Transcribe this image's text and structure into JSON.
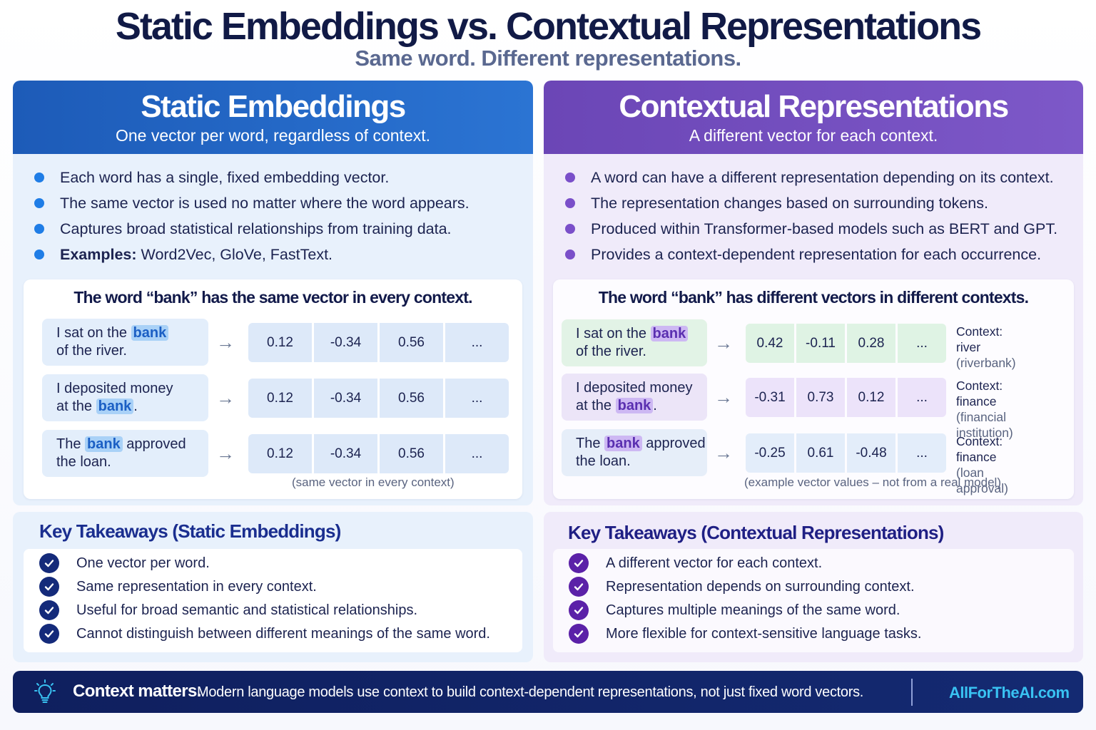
{
  "header": {
    "title": "Static Embeddings vs. Contextual Representations",
    "subtitle": "Same word. Different representations."
  },
  "static": {
    "title": "Static Embeddings",
    "subtitle": "One vector per word, regardless of context.",
    "bullets": [
      "Each word has a single, fixed embedding vector.",
      "The same vector is used no matter where the word appears.",
      "Captures broad statistical relationships from training data."
    ],
    "examples_label": "Examples:",
    "examples_value": " Word2Vec, GloVe, FastText.",
    "card_title": "The word “bank” has the same vector in every context.",
    "rows": [
      {
        "pre": "I sat on the ",
        "word": "bank",
        "post": "",
        "line2": "of the river.",
        "values": [
          "0.12",
          "-0.34",
          "0.56",
          "..."
        ]
      },
      {
        "pre": "I deposited money",
        "word": "",
        "post": "",
        "line2_pre": "at the ",
        "line2_word": "bank",
        "line2_post": ".",
        "values": [
          "0.12",
          "-0.34",
          "0.56",
          "..."
        ]
      },
      {
        "pre": "The ",
        "word": "bank",
        "post": " approved",
        "line2": "the loan.",
        "values": [
          "0.12",
          "-0.34",
          "0.56",
          "..."
        ]
      }
    ],
    "note": "(same vector in every context)",
    "takeaways_title": "Key Takeaways (Static Embeddings)",
    "takeaways": [
      "One vector per word.",
      "Same representation in every context.",
      "Useful for broad semantic and statistical relationships.",
      "Cannot distinguish between different meanings of the same word."
    ]
  },
  "contextual": {
    "title": "Contextual Representations",
    "subtitle": "A different vector for each context.",
    "bullets": [
      "A word can have a different representation depending on its context.",
      "The representation changes based on surrounding tokens.",
      "Produced within Transformer-based models such as BERT and GPT.",
      "Provides a context-dependent representation for each occurrence."
    ],
    "card_title": "The word “bank” has different vectors in different contexts.",
    "rows": [
      {
        "pre": "I sat on the ",
        "word": "bank",
        "post": "",
        "line2": "of the river.",
        "values": [
          "0.42",
          "-0.11",
          "0.28",
          "..."
        ],
        "context": "Context: river",
        "context_sub": "(riverbank)",
        "color": "#dff3e4",
        "sent_color": "#e2f3e6"
      },
      {
        "pre": "I deposited money",
        "word": "",
        "post": "",
        "line2_pre": "at the ",
        "line2_word": "bank",
        "line2_post": ".",
        "values": [
          "-0.31",
          "0.73",
          "0.12",
          "..."
        ],
        "context": "Context: finance",
        "context_sub": "(financial institution)",
        "color": "#ece3fa",
        "sent_color": "#ece5f8"
      },
      {
        "pre": "The ",
        "word": "bank",
        "post": " approved",
        "line2": "the loan.",
        "values": [
          "-0.25",
          "0.61",
          "-0.48",
          "..."
        ],
        "context": "Context: finance",
        "context_sub": "(loan approval)",
        "color": "#e3edfa",
        "sent_color": "#e6eef9"
      }
    ],
    "note": "(example vector values – not from a real model)",
    "takeaways_title": "Key Takeaways (Contextual Representations)",
    "takeaways": [
      "A different vector for each context.",
      "Representation depends on surrounding context.",
      "Captures multiple meanings of the same word.",
      "More flexible for context-sensitive language tasks."
    ]
  },
  "footer": {
    "strong": "Context matters.",
    "text": "Modern language models use context to build context-dependent representations, not just fixed word vectors.",
    "brand": "AllForTheAI.com",
    "icon": "lightbulb-icon"
  },
  "colors": {
    "static_accent": "#1f7de6",
    "contextual_accent": "#7a4fc9",
    "footer_bg": "#0f1f5e",
    "brand": "#39c2f2"
  }
}
